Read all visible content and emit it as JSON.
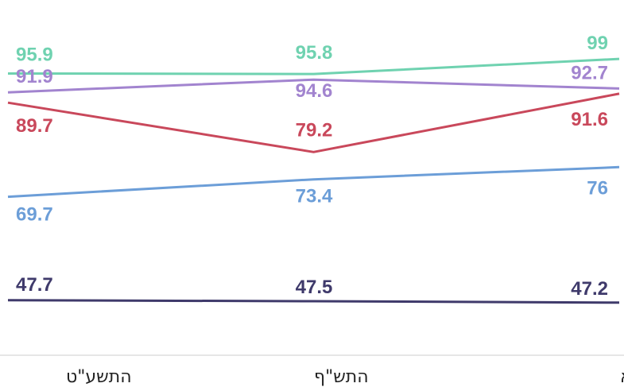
{
  "chart_data": {
    "type": "line",
    "categories": [
      "התשע\"ט",
      "התש\"ף",
      "התשפ\"א"
    ],
    "series": [
      {
        "values": [
          95.9,
          95.8,
          99
        ],
        "color": "#6fd2b0"
      },
      {
        "values": [
          91.9,
          94.6,
          92.7
        ],
        "color": "#a284cf"
      },
      {
        "values": [
          89.7,
          79.2,
          91.6
        ],
        "color": "#c9485b"
      },
      {
        "values": [
          69.7,
          73.4,
          76
        ],
        "color": "#6c9ed8"
      },
      {
        "values": [
          47.7,
          47.5,
          47.2
        ],
        "color": "#3f3a6b"
      }
    ],
    "legend": "none",
    "grid": false,
    "xaxis_line": true
  }
}
